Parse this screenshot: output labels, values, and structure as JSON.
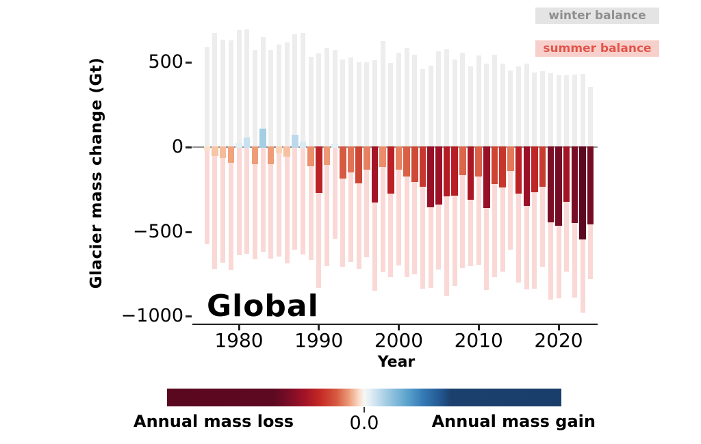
{
  "title": "Global",
  "axes": {
    "y_ticks": [
      {
        "label": "500",
        "value": 500
      },
      {
        "label": "0",
        "value": 0
      },
      {
        "label": "−500",
        "value": -500
      },
      {
        "label": "−1000",
        "value": -1000
      }
    ],
    "x_ticks": [
      {
        "label": "1980",
        "value": 1980
      },
      {
        "label": "1990",
        "value": 1990
      },
      {
        "label": "2000",
        "value": 2000
      },
      {
        "label": "2010",
        "value": 2010
      },
      {
        "label": "2020",
        "value": 2020
      }
    ]
  },
  "legend": {
    "items": [
      {
        "label": "winter balance",
        "swatch_color": "#e4e4e4",
        "text_color": "#8f8f8f"
      },
      {
        "label": "summer balance",
        "swatch_color": "#f8d0cb",
        "text_color": "#e2544a"
      }
    ]
  },
  "colorbar": {
    "left_label": "Annual mass loss",
    "center_tick": "0.0",
    "right_label": "Annual mass gain",
    "loss_color": "#5a0820",
    "gain_color": "#1a3e6b"
  },
  "chart_data": {
    "type": "bar",
    "title": "Global",
    "xlabel": "Year",
    "ylabel": "Glacier mass change (Gt)",
    "ylim": [
      -1050,
      750
    ],
    "x_range": [
      1974.5,
      2025
    ],
    "grid": false,
    "legend_position": "top-right",
    "units": "Gt",
    "categories": [
      1976,
      1977,
      1978,
      1979,
      1980,
      1981,
      1982,
      1983,
      1984,
      1985,
      1986,
      1987,
      1988,
      1989,
      1990,
      1991,
      1992,
      1993,
      1994,
      1995,
      1996,
      1997,
      1998,
      1999,
      2000,
      2001,
      2002,
      2003,
      2004,
      2005,
      2006,
      2007,
      2008,
      2009,
      2010,
      2011,
      2012,
      2013,
      2014,
      2015,
      2016,
      2017,
      2018,
      2019,
      2020,
      2021,
      2022,
      2023,
      2024
    ],
    "series": [
      {
        "name": "winter balance",
        "values": [
          590,
          675,
          635,
          630,
          690,
          695,
          575,
          650,
          575,
          605,
          620,
          667,
          675,
          533,
          553,
          587,
          574,
          517,
          531,
          500,
          500,
          515,
          625,
          497,
          558,
          585,
          544,
          460,
          480,
          565,
          578,
          516,
          556,
          478,
          542,
          495,
          547,
          493,
          451,
          477,
          493,
          440,
          448,
          437,
          424,
          424,
          427,
          431,
          356
        ]
      },
      {
        "name": "summer balance",
        "values": [
          -575,
          -720,
          -685,
          -727,
          -640,
          -632,
          -663,
          -618,
          -660,
          -646,
          -686,
          -605,
          -636,
          -668,
          -833,
          -702,
          -541,
          -708,
          -680,
          -719,
          -650,
          -850,
          -739,
          -770,
          -700,
          -770,
          -750,
          -837,
          -833,
          -725,
          -880,
          -819,
          -716,
          -705,
          -694,
          -846,
          -766,
          -735,
          -605,
          -802,
          -842,
          -837,
          -708,
          -900,
          -893,
          -735,
          -890,
          -977,
          -779
        ]
      },
      {
        "name": "annual balance",
        "values": [
          -20,
          -54,
          -64,
          -94,
          24,
          56,
          -100,
          108,
          -101,
          -37,
          -58,
          74,
          33,
          -115,
          -271,
          -105,
          20,
          -185,
          -149,
          -215,
          -133,
          -327,
          -118,
          -275,
          -132,
          -175,
          -208,
          -235,
          -355,
          -340,
          -291,
          -287,
          -165,
          -312,
          -172,
          -360,
          -218,
          -240,
          -141,
          -273,
          -349,
          -265,
          -233,
          -444,
          -464,
          -323,
          -450,
          -545,
          -455
        ]
      }
    ],
    "series_colors": {
      "winter": "#ededed",
      "summer": "#f9d8d6"
    }
  }
}
